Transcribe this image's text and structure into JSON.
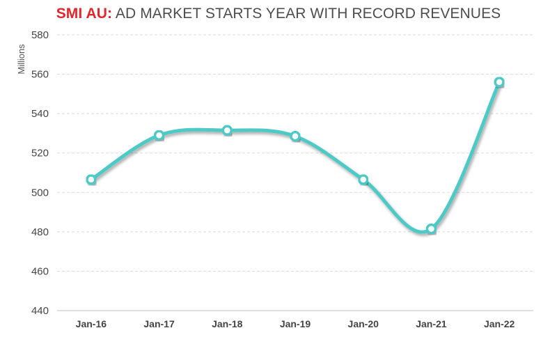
{
  "title": {
    "accent": "SMI AU:",
    "rest": " AD MARKET STARTS YEAR WITH RECORD REVENUES"
  },
  "colors": {
    "line": "#4dc9c6",
    "title_accent": "#e3262c",
    "grid": "#d9d9d9"
  },
  "chart_data": {
    "type": "line",
    "title": "SMI AU: AD MARKET STARTS YEAR WITH RECORD REVENUES",
    "xlabel": "",
    "ylabel": "Millions",
    "categories": [
      "Jan-16",
      "Jan-17",
      "Jan-18",
      "Jan-19",
      "Jan-20",
      "Jan-21",
      "Jan-22"
    ],
    "values": [
      506.5,
      529,
      531.5,
      528.5,
      506.5,
      481.5,
      556
    ],
    "ylim": [
      440,
      580
    ],
    "yticks": [
      440,
      460,
      480,
      500,
      520,
      540,
      560,
      580
    ],
    "grid": "horizontal dashed",
    "legend": "none",
    "smoothed": true
  }
}
